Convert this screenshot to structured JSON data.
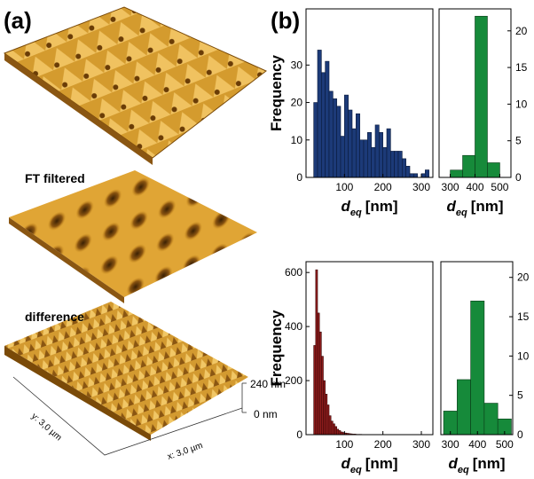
{
  "panel_a": {
    "label": "(a)",
    "middle_label": "FT filtered",
    "bottom_label": "difference",
    "z_top": "240 nm",
    "z_bottom": "0 nm",
    "y_axis": "y: 3,0 µm",
    "x_axis": "x: 3,0 µm"
  },
  "panel_b": {
    "label": "(b)"
  },
  "chart_data": [
    {
      "type": "histogram",
      "color": "#1c3a78",
      "edge": "#0a1a3a",
      "bins": [
        20,
        30,
        40,
        50,
        60,
        70,
        80,
        90,
        100,
        110,
        120,
        130,
        140,
        150,
        160,
        170,
        180,
        190,
        200,
        210,
        220,
        230,
        240,
        250,
        260,
        270,
        280,
        290,
        300,
        310,
        320
      ],
      "values": [
        20,
        34,
        28,
        31,
        23,
        21,
        19,
        11,
        22,
        18,
        13,
        17,
        10,
        10,
        12,
        8,
        14,
        12,
        8,
        13,
        7,
        7,
        7,
        5,
        3,
        1,
        1,
        0,
        1,
        2
      ],
      "xlim": [
        0,
        330
      ],
      "ylim": [
        0,
        45
      ],
      "xticks": [
        100,
        200,
        300
      ],
      "yticks": [
        0,
        10,
        20,
        30
      ],
      "ylabel": "Frequency",
      "xlabel": {
        "symbol": "d",
        "subscript": "eq",
        "unit": "[nm]"
      },
      "yaxis_side": "left"
    },
    {
      "type": "histogram",
      "color": "#168a3a",
      "edge": "#0a3a18",
      "bins": [
        300,
        350,
        400,
        450,
        500
      ],
      "values": [
        1,
        3,
        22,
        2
      ],
      "xlim": [
        255,
        545
      ],
      "ylim": [
        0,
        23
      ],
      "xticks": [
        300,
        400,
        500
      ],
      "yticks": [
        0,
        5,
        10,
        15,
        20
      ],
      "xlabel": {
        "symbol": "d",
        "subscript": "eq",
        "unit": "[nm]"
      },
      "yaxis_side": "right"
    },
    {
      "type": "histogram",
      "color": "#8e1c1c",
      "edge": "#3a0808",
      "bins": [
        20,
        25,
        30,
        35,
        40,
        45,
        50,
        55,
        60,
        65,
        70,
        75,
        80,
        85,
        90,
        95,
        100,
        105,
        110,
        115,
        120,
        125,
        130,
        135,
        140,
        145,
        150
      ],
      "values": [
        330,
        610,
        450,
        380,
        290,
        200,
        150,
        110,
        70,
        50,
        40,
        30,
        20,
        15,
        10,
        8,
        6,
        5,
        4,
        3,
        2,
        2,
        1,
        1,
        1,
        0
      ],
      "xlim": [
        0,
        330
      ],
      "ylim": [
        0,
        640
      ],
      "xticks": [
        100,
        200,
        300
      ],
      "yticks": [
        0,
        200,
        400,
        600
      ],
      "ylabel": "Frequency",
      "xlabel": {
        "symbol": "d",
        "subscript": "eq",
        "unit": "[nm]"
      },
      "yaxis_side": "left"
    },
    {
      "type": "histogram",
      "color": "#168a3a",
      "edge": "#0a3a18",
      "bins": [
        275,
        325,
        375,
        425,
        475,
        525
      ],
      "values": [
        3,
        7,
        17,
        4,
        2
      ],
      "xlim": [
        265,
        530
      ],
      "ylim": [
        0,
        22
      ],
      "xticks": [
        300,
        400,
        500
      ],
      "yticks": [
        0,
        5,
        10,
        15,
        20
      ],
      "xlabel": {
        "symbol": "d",
        "subscript": "eq",
        "unit": "[nm]"
      },
      "yaxis_side": "right"
    }
  ]
}
